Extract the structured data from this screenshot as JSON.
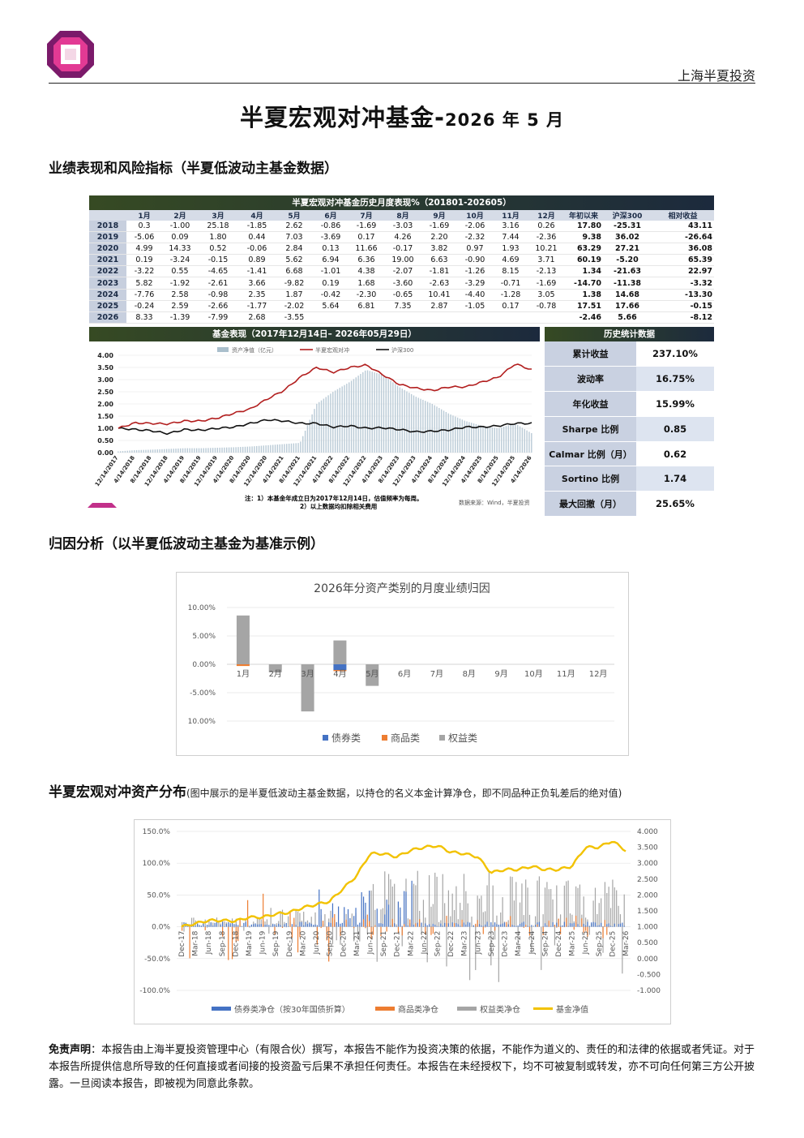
{
  "header": {
    "company": "上海半夏投资"
  },
  "title": {
    "main": "半夏宏观对冲基金-",
    "sub": "2026 年 5 月"
  },
  "sections": {
    "perf": "业绩表现和风险指标（半夏低波动主基金数据）",
    "attr": "归因分析（以半夏低波动主基金为基准示例）",
    "alloc": "半夏宏观对冲资产分布",
    "alloc_note": "(图中展示的是半夏低波动主基金数据，以持仓的名义本金计算净仓，即不同品种正负轧差后的绝对值)"
  },
  "table": {
    "title": "半夏宏观对冲基金历史月度表现%（201801-202605）",
    "headers": [
      "",
      "1月",
      "2月",
      "3月",
      "4月",
      "5月",
      "6月",
      "7月",
      "8月",
      "9月",
      "10月",
      "11月",
      "12月",
      "年初以来",
      "沪深300",
      "相对收益"
    ],
    "rows": [
      [
        "2018",
        "0.3",
        "-1.00",
        "25.18",
        "-1.85",
        "2.62",
        "-0.86",
        "-1.69",
        "-3.03",
        "-1.69",
        "-2.06",
        "3.16",
        "0.26",
        "17.80",
        "-25.31",
        "43.11"
      ],
      [
        "2019",
        "-5.06",
        "0.09",
        "1.80",
        "0.44",
        "7.03",
        "-3.69",
        "0.17",
        "4.26",
        "2.20",
        "-2.32",
        "7.44",
        "-2.36",
        "9.38",
        "36.02",
        "-26.64"
      ],
      [
        "2020",
        "4.99",
        "14.33",
        "0.52",
        "-0.06",
        "2.84",
        "0.13",
        "11.66",
        "-0.17",
        "3.82",
        "0.97",
        "1.93",
        "10.21",
        "63.29",
        "27.21",
        "36.08"
      ],
      [
        "2021",
        "0.19",
        "-3.24",
        "-0.15",
        "0.89",
        "5.62",
        "6.94",
        "6.36",
        "19.00",
        "6.63",
        "-0.90",
        "4.69",
        "3.71",
        "60.19",
        "-5.20",
        "65.39"
      ],
      [
        "2022",
        "-3.22",
        "0.55",
        "-4.65",
        "-1.41",
        "6.68",
        "-1.01",
        "4.38",
        "-2.07",
        "-1.81",
        "-1.26",
        "8.15",
        "-2.13",
        "1.34",
        "-21.63",
        "22.97"
      ],
      [
        "2023",
        "5.82",
        "-1.92",
        "-2.61",
        "3.66",
        "-9.82",
        "0.19",
        "1.68",
        "-3.60",
        "-2.63",
        "-3.29",
        "-0.71",
        "-1.69",
        "-14.70",
        "-11.38",
        "-3.32"
      ],
      [
        "2024",
        "-7.76",
        "2.58",
        "-0.98",
        "2.35",
        "1.87",
        "-0.42",
        "-2.30",
        "-0.65",
        "10.41",
        "-4.40",
        "-1.28",
        "3.05",
        "1.38",
        "14.68",
        "-13.30"
      ],
      [
        "2025",
        "-0.24",
        "2.59",
        "-2.66",
        "-1.77",
        "-2.02",
        "5.64",
        "6.81",
        "7.35",
        "2.87",
        "-1.05",
        "0.17",
        "-0.78",
        "17.51",
        "17.66",
        "-0.15"
      ],
      [
        "2026",
        "8.33",
        "-1.39",
        "-7.99",
        "2.68",
        "-3.55",
        "",
        "",
        "",
        "",
        "",
        "",
        "",
        "-2.46",
        "5.66",
        "-8.12"
      ]
    ]
  },
  "fund_chart": {
    "title": "基金表现（2017年12月14日– 2026年05月29日）",
    "legend": [
      "资产净值（亿元）",
      "半夏宏观对冲",
      "沪深300"
    ],
    "note1": "注：1）本基金年成立日为2017年12月14日，估值频率为每周。",
    "note2": "2）以上数据均扣除相关费用",
    "source": "数据来源：Wind，半夏投资",
    "colors": {
      "fund": "#b21e1e",
      "index": "#111111",
      "aum": "#aabfcc"
    }
  },
  "stats": {
    "title": "历史统计数据",
    "rows": [
      {
        "label": "累计收益",
        "value": "237.10%"
      },
      {
        "label": "波动率",
        "value": "16.75%"
      },
      {
        "label": "年化收益",
        "value": "15.99%"
      },
      {
        "label": "Sharpe 比例",
        "value": "0.85"
      },
      {
        "label": "Calmar 比例（月）",
        "value": "0.62"
      },
      {
        "label": "Sortino 比例",
        "value": "1.74"
      },
      {
        "label": "最大回撤（月）",
        "value": "25.65%"
      }
    ]
  },
  "chart_data": [
    {
      "type": "line",
      "title": "",
      "xlabel": "",
      "ylabel": "",
      "x_ticks": [
        "12/14/2017",
        "4/14/2018",
        "8/14/2018",
        "12/14/2018",
        "4/14/2019",
        "8/14/2019",
        "12/14/2019",
        "4/14/2020",
        "8/14/2020",
        "12/14/2020",
        "4/14/2021",
        "8/14/2021",
        "12/14/2021",
        "4/14/2022",
        "8/14/2022",
        "12/14/2022",
        "4/14/2023",
        "8/14/2023",
        "12/14/2023",
        "4/14/2024",
        "8/14/2024",
        "12/14/2024",
        "4/14/2025",
        "8/14/2025",
        "12/14/2025",
        "4/14/2026"
      ],
      "y_ticks": [
        "0.00",
        "0.50",
        "1.00",
        "1.50",
        "2.00",
        "2.50",
        "3.00",
        "3.50",
        "4.00"
      ],
      "ylim": [
        0,
        4
      ],
      "series": [
        {
          "name": "半夏宏观对冲",
          "values": [
            1.0,
            1.22,
            1.2,
            1.18,
            1.3,
            1.3,
            1.42,
            1.62,
            1.8,
            2.2,
            2.55,
            3.1,
            3.5,
            3.3,
            3.5,
            3.6,
            3.2,
            2.8,
            2.65,
            2.55,
            2.7,
            2.7,
            2.9,
            3.1,
            3.65,
            3.4
          ]
        },
        {
          "name": "沪深300",
          "values": [
            1.0,
            0.95,
            0.9,
            0.78,
            0.95,
            0.92,
            1.0,
            1.05,
            1.2,
            1.35,
            1.3,
            1.2,
            1.2,
            1.05,
            1.1,
            1.0,
            1.02,
            0.95,
            0.85,
            0.88,
            0.93,
            1.05,
            1.05,
            1.1,
            1.2,
            1.2
          ]
        },
        {
          "name": "资产净值（亿元）",
          "values": [
            0.05,
            0.1,
            0.12,
            0.15,
            0.18,
            0.18,
            0.2,
            0.22,
            0.25,
            0.3,
            0.35,
            0.4,
            2.0,
            2.5,
            2.9,
            3.4,
            3.2,
            2.7,
            2.3,
            2.0,
            1.6,
            1.3,
            1.1,
            1.0,
            1.2,
            0.8
          ]
        }
      ]
    },
    {
      "type": "bar",
      "title": "2026年分资产类别的月度业绩归因",
      "categories": [
        "1月",
        "2月",
        "3月",
        "4月",
        "5月",
        "6月",
        "7月",
        "8月",
        "9月",
        "10月",
        "11月",
        "12月"
      ],
      "y_ticks": [
        "10.00%",
        "5.00%",
        "0.00%",
        "-5.00%",
        "10.00%"
      ],
      "ylim": [
        -10,
        10
      ],
      "series": [
        {
          "name": "债券类",
          "values": [
            0.0,
            0.0,
            0.0,
            -1.0,
            0.0,
            0,
            0,
            0,
            0,
            0,
            0,
            0
          ]
        },
        {
          "name": "商品类",
          "values": [
            -0.3,
            0.0,
            0.0,
            -0.2,
            0.0,
            0,
            0,
            0,
            0,
            0,
            0,
            0
          ]
        },
        {
          "name": "权益类",
          "values": [
            8.6,
            -1.4,
            -8.3,
            4.2,
            -3.8,
            0,
            0,
            0,
            0,
            0,
            0,
            0
          ]
        }
      ],
      "colors": [
        "#4472c4",
        "#ed7d31",
        "#a5a5a5"
      ]
    },
    {
      "type": "bar",
      "title": "",
      "x_ticks": [
        "Dec-17",
        "Mar-18",
        "Jun-18",
        "Sep-18",
        "Dec-18",
        "Mar-19",
        "Jun-19",
        "Sep-19",
        "Dec-19",
        "Mar-20",
        "Jun-20",
        "Sep-20",
        "Dec-20",
        "Mar-21",
        "Jun-21",
        "Sep-21",
        "Dec-21",
        "Mar-22",
        "Jun-22",
        "Sep-22",
        "Dec-22",
        "Mar-23",
        "Jun-23",
        "Sep-23",
        "Dec-23",
        "Mar-24",
        "Jun-24",
        "Sep-24",
        "Dec-24",
        "Mar-25",
        "Jun-25",
        "Sep-25",
        "Dec-25",
        "Mar-26"
      ],
      "y_left_ticks": [
        "150.0%",
        "100.0%",
        "50.0%",
        "0.0%",
        "-50.0%",
        "-100.0%"
      ],
      "y_right_ticks": [
        "4.000",
        "3.500",
        "3.000",
        "2.500",
        "2.000",
        "1.500",
        "1.000",
        "0.500",
        "0.000",
        "-0.500",
        "-1.000"
      ],
      "ylim_left": [
        -100,
        150
      ],
      "ylim_right": [
        -1,
        4
      ],
      "series": [
        {
          "name": "债券类净仓（按30年国债折算）",
          "axis": "left"
        },
        {
          "name": "商品类净仓",
          "axis": "left"
        },
        {
          "name": "权益类净仓",
          "axis": "left"
        },
        {
          "name": "基金净值",
          "axis": "right",
          "values": [
            1.0,
            1.1,
            1.2,
            1.2,
            1.18,
            1.3,
            1.3,
            1.4,
            1.45,
            1.6,
            1.7,
            1.8,
            2.2,
            2.6,
            3.3,
            3.3,
            3.2,
            3.4,
            3.5,
            3.55,
            3.35,
            3.3,
            3.2,
            2.7,
            2.8,
            2.8,
            2.9,
            2.8,
            2.8,
            2.9,
            3.5,
            3.5,
            3.7,
            3.4
          ]
        }
      ],
      "colors": [
        "#4472c4",
        "#ed7d31",
        "#a5a5a5",
        "#f2c200"
      ]
    }
  ],
  "disclaimer": {
    "label": "免责声明",
    "text": "：本报告由上海半夏投资管理中心（有限合伙）撰写，本报告不能作为投资决策的依据，不能作为道义的、责任的和法律的依据或者凭证。对于本报告所提供信息所导致的任何直接或者间接的投资盈亏后果不承担任何责任。本报告在未经授权下，均不可被复制或转发，亦不可向任何第三方公开披露。一旦阅读本报告，即被视为同意此条款。"
  }
}
